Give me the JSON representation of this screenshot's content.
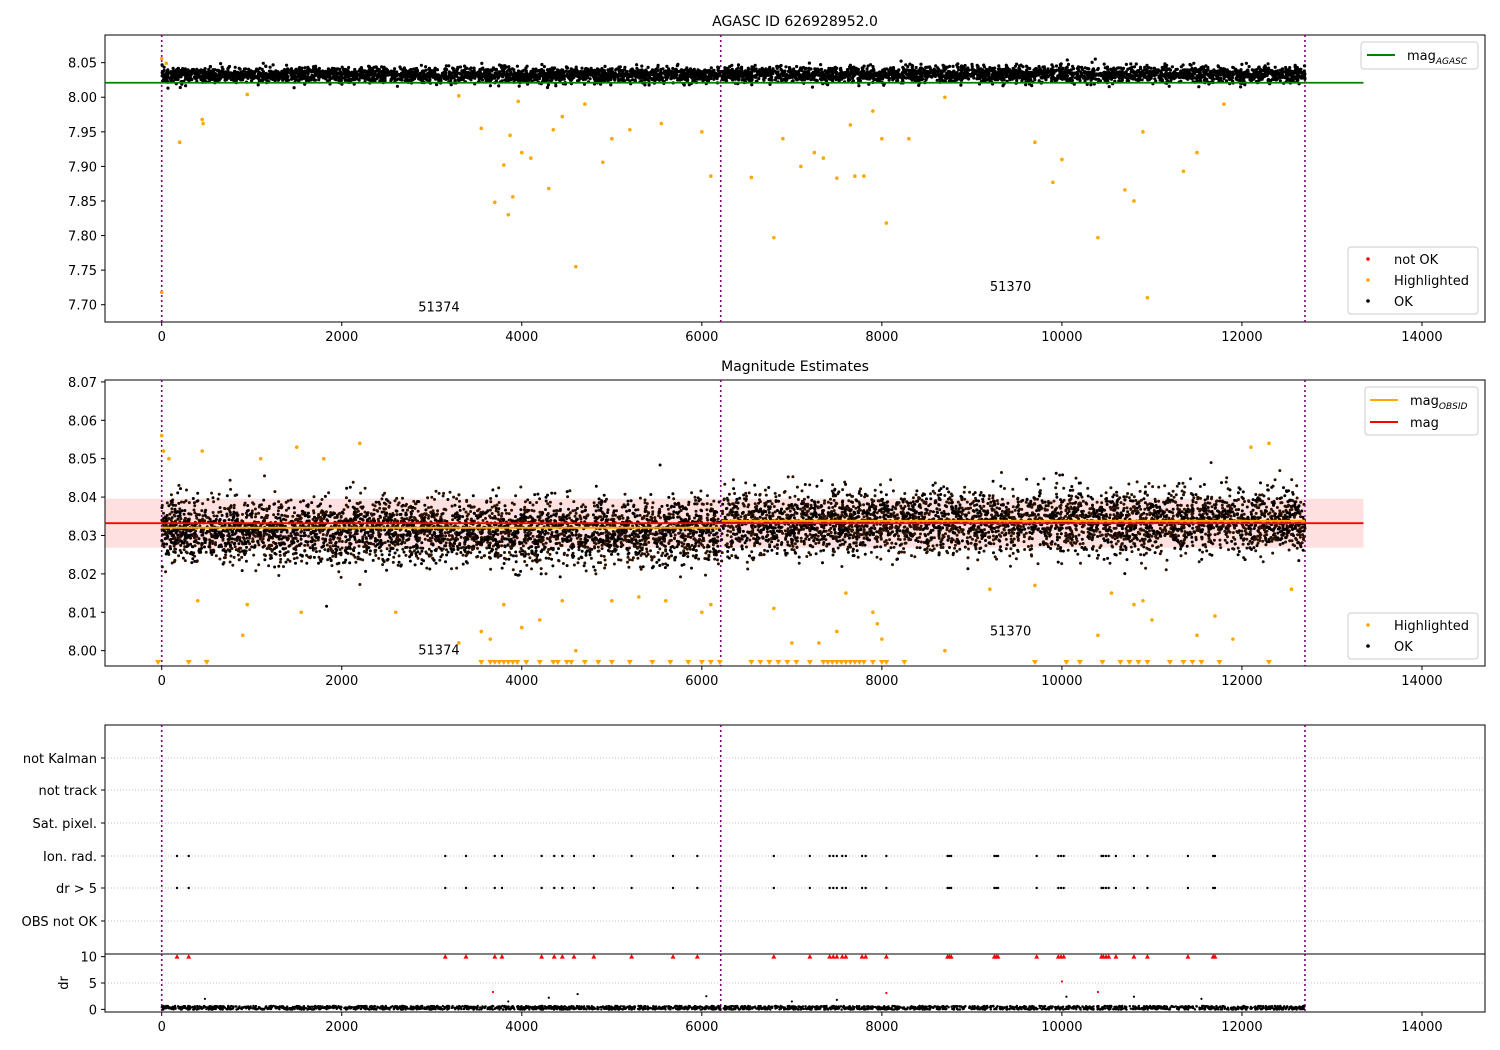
{
  "figure": {
    "title": "AGASC ID 626928952.0"
  },
  "chart_data": [
    {
      "type": "scatter",
      "title": "AGASC ID 626928952.0",
      "xlim": [
        -630,
        14700
      ],
      "ylim": [
        7.675,
        8.09
      ],
      "x_ticks": [
        0,
        2000,
        4000,
        6000,
        8000,
        10000,
        12000,
        14000
      ],
      "x_tick_labels": [
        "0",
        "2000",
        "4000",
        "6000",
        "8000",
        "10000",
        "12000",
        "14000"
      ],
      "y_ticks": [
        7.7,
        7.75,
        7.8,
        7.85,
        7.9,
        7.95,
        8.0,
        8.05
      ],
      "y_tick_labels": [
        "7.70",
        "7.75",
        "7.80",
        "7.85",
        "7.90",
        "7.95",
        "8.00",
        "8.05"
      ],
      "vlines": [
        0,
        6210,
        12700
      ],
      "obsid_labels": [
        {
          "text": "51374",
          "x": 2850,
          "y": 7.69
        },
        {
          "text": "51370",
          "x": 9200,
          "y": 7.72
        }
      ],
      "lines": [
        {
          "name": "mag_AGASC",
          "color": "#008000",
          "y": 8.021,
          "x": [
            -630,
            13350
          ]
        }
      ],
      "series_bands": [
        {
          "name": "OK",
          "color": "#000000",
          "x": [
            0,
            6200
          ],
          "center": 8.032,
          "halfwidth": 0.012
        },
        {
          "name": "OK",
          "color": "#000000",
          "x": [
            6220,
            12700
          ],
          "center": 8.033,
          "halfwidth": 0.013
        }
      ],
      "highlighted_points": [
        [
          0,
          8.056
        ],
        [
          0,
          7.718
        ],
        [
          50,
          8.049
        ],
        [
          200,
          7.935
        ],
        [
          450,
          7.968
        ],
        [
          460,
          7.962
        ],
        [
          950,
          8.004
        ],
        [
          3300,
          8.002
        ],
        [
          3550,
          7.955
        ],
        [
          3700,
          7.848
        ],
        [
          3800,
          7.902
        ],
        [
          3850,
          7.83
        ],
        [
          3870,
          7.945
        ],
        [
          3900,
          7.856
        ],
        [
          3960,
          7.994
        ],
        [
          4000,
          7.92
        ],
        [
          4100,
          7.912
        ],
        [
          4300,
          7.868
        ],
        [
          4350,
          7.953
        ],
        [
          4450,
          7.972
        ],
        [
          4600,
          7.755
        ],
        [
          4700,
          7.99
        ],
        [
          4900,
          7.906
        ],
        [
          5000,
          7.94
        ],
        [
          5200,
          7.953
        ],
        [
          5550,
          7.962
        ],
        [
          6000,
          7.95
        ],
        [
          6100,
          7.886
        ],
        [
          6550,
          7.884
        ],
        [
          6800,
          7.797
        ],
        [
          6900,
          7.94
        ],
        [
          7100,
          7.9
        ],
        [
          7250,
          7.92
        ],
        [
          7350,
          7.912
        ],
        [
          7500,
          7.883
        ],
        [
          7650,
          7.96
        ],
        [
          7700,
          7.886
        ],
        [
          7800,
          7.886
        ],
        [
          7900,
          7.98
        ],
        [
          8000,
          7.94
        ],
        [
          8050,
          7.818
        ],
        [
          8300,
          7.94
        ],
        [
          8700,
          8.0
        ],
        [
          9700,
          7.935
        ],
        [
          9900,
          7.877
        ],
        [
          10000,
          7.91
        ],
        [
          10400,
          7.797
        ],
        [
          10700,
          7.866
        ],
        [
          10800,
          7.85
        ],
        [
          10900,
          7.95
        ],
        [
          10950,
          7.71
        ],
        [
          11350,
          7.893
        ],
        [
          11500,
          7.92
        ],
        [
          11800,
          7.99
        ]
      ],
      "legend": [
        {
          "label": "mag",
          "subscript": "AGASC",
          "kind": "line",
          "color": "#008000",
          "position": "upper-right"
        },
        {
          "label": "not OK",
          "kind": "dot",
          "color": "#ff0000",
          "position": "lower-right"
        },
        {
          "label": "Highlighted",
          "kind": "dot",
          "color": "#ffa500",
          "position": "lower-right"
        },
        {
          "label": "OK",
          "kind": "dot",
          "color": "#000000",
          "position": "lower-right"
        }
      ]
    },
    {
      "type": "scatter",
      "title": "Magnitude Estimates",
      "xlim": [
        -630,
        14700
      ],
      "ylim": [
        7.996,
        8.0705
      ],
      "x_ticks": [
        0,
        2000,
        4000,
        6000,
        8000,
        10000,
        12000,
        14000
      ],
      "x_tick_labels": [
        "0",
        "2000",
        "4000",
        "6000",
        "8000",
        "10000",
        "12000",
        "14000"
      ],
      "y_ticks": [
        8.0,
        8.01,
        8.02,
        8.03,
        8.04,
        8.05,
        8.06,
        8.07
      ],
      "y_tick_labels": [
        "8.00",
        "8.01",
        "8.02",
        "8.03",
        "8.04",
        "8.05",
        "8.06",
        "8.07"
      ],
      "vlines": [
        0,
        6210,
        12700
      ],
      "obsid_labels": [
        {
          "text": "51374",
          "x": 2850,
          "y": 7.999
        },
        {
          "text": "51370",
          "x": 9200,
          "y": 8.004
        }
      ],
      "band": {
        "y": [
          8.0268,
          8.0396
        ],
        "x": [
          -630,
          13350
        ],
        "color": "#ffcccc"
      },
      "lines": [
        {
          "name": "mag",
          "color": "#ff0000",
          "y": 8.0332,
          "x": [
            -630,
            13350
          ]
        },
        {
          "name": "mag_OBSID",
          "color": "#ffa500",
          "segments": [
            {
              "x": [
                0,
                6200
              ],
              "y": 8.032
            },
            {
              "x": [
                6220,
                12700
              ],
              "y": 8.0338
            }
          ]
        }
      ],
      "series_bands": [
        {
          "name": "OK",
          "color": "#000000",
          "x": [
            0,
            6200
          ],
          "center": 8.031,
          "halfwidth": 0.009
        },
        {
          "name": "OK",
          "color": "#000000",
          "x": [
            6220,
            12700
          ],
          "center": 8.0335,
          "halfwidth": 0.009
        }
      ],
      "highlighted_points": [
        [
          0,
          8.056
        ],
        [
          20,
          8.052
        ],
        [
          80,
          8.05
        ],
        [
          400,
          8.013
        ],
        [
          450,
          8.052
        ],
        [
          900,
          8.004
        ],
        [
          950,
          8.012
        ],
        [
          1100,
          8.05
        ],
        [
          1550,
          8.01
        ],
        [
          1500,
          8.053
        ],
        [
          1800,
          8.05
        ],
        [
          2200,
          8.054
        ],
        [
          2600,
          8.01
        ],
        [
          3300,
          8.002
        ],
        [
          3550,
          8.005
        ],
        [
          3650,
          8.003
        ],
        [
          3800,
          8.012
        ],
        [
          4000,
          8.006
        ],
        [
          4200,
          8.008
        ],
        [
          4450,
          8.013
        ],
        [
          4600,
          8.0
        ],
        [
          5000,
          8.013
        ],
        [
          5300,
          8.014
        ],
        [
          5600,
          8.013
        ],
        [
          6000,
          8.01
        ],
        [
          6100,
          8.012
        ],
        [
          6800,
          8.011
        ],
        [
          7000,
          8.002
        ],
        [
          7300,
          8.002
        ],
        [
          7500,
          8.005
        ],
        [
          7600,
          8.015
        ],
        [
          7900,
          8.01
        ],
        [
          7950,
          8.007
        ],
        [
          8000,
          8.003
        ],
        [
          8700,
          8.0
        ],
        [
          9200,
          8.016
        ],
        [
          9700,
          8.017
        ],
        [
          10400,
          8.004
        ],
        [
          10550,
          8.015
        ],
        [
          10800,
          8.012
        ],
        [
          10900,
          8.013
        ],
        [
          11000,
          8.008
        ],
        [
          11500,
          8.004
        ],
        [
          11700,
          8.009
        ],
        [
          11900,
          8.003
        ],
        [
          12100,
          8.053
        ],
        [
          12300,
          8.054
        ],
        [
          12550,
          8.016
        ]
      ],
      "below_axis_markers_x": [
        -40,
        300,
        500,
        3550,
        3650,
        3700,
        3750,
        3800,
        3850,
        3900,
        3950,
        4050,
        4200,
        4350,
        4400,
        4500,
        4550,
        4700,
        4850,
        5000,
        5200,
        5450,
        5650,
        5850,
        6000,
        6100,
        6200,
        6550,
        6650,
        6750,
        6850,
        6950,
        7050,
        7200,
        7350,
        7400,
        7450,
        7500,
        7550,
        7600,
        7650,
        7700,
        7750,
        7800,
        7900,
        8000,
        8050,
        8250,
        9700,
        10050,
        10200,
        10450,
        10650,
        10750,
        10850,
        10950,
        11200,
        11350,
        11450,
        11550,
        11750,
        12300
      ],
      "legend": [
        {
          "label": "mag",
          "subscript": "OBSID",
          "kind": "line",
          "color": "#ffa500",
          "position": "upper-right"
        },
        {
          "label": "mag",
          "subscript": "",
          "kind": "line",
          "color": "#ff0000",
          "position": "upper-right"
        },
        {
          "label": "Highlighted",
          "kind": "dot",
          "color": "#ffa500",
          "position": "lower-right"
        },
        {
          "label": "OK",
          "kind": "dot",
          "color": "#000000",
          "position": "lower-right"
        }
      ]
    },
    {
      "type": "scatter",
      "title": "",
      "xlim": [
        -630,
        14700
      ],
      "categories": [
        "not Kalman",
        "not track",
        "Sat. pixel.",
        "Ion. rad.",
        "dr > 5",
        "OBS not OK"
      ],
      "vlines": [
        0,
        6210,
        12700
      ],
      "flag_events_x": [
        170,
        300,
        3150,
        3380,
        3700,
        3780,
        4220,
        4360,
        4450,
        4580,
        4800,
        5220,
        5680,
        5950,
        6800,
        7200,
        7420,
        7460,
        7500,
        7560,
        7600,
        7780,
        7820,
        8050,
        8730,
        8750,
        8770,
        9250,
        9270,
        9290,
        9720,
        9960,
        9990,
        10020,
        10440,
        10460,
        10490,
        10520,
        10600,
        10800,
        10950,
        11400,
        11680,
        11700
      ]
    },
    {
      "type": "scatter",
      "title": "",
      "ylabel": "dr",
      "xlim": [
        -630,
        14700
      ],
      "ylim": [
        -0.5,
        10.5
      ],
      "x_ticks": [
        0,
        2000,
        4000,
        6000,
        8000,
        10000,
        12000,
        14000
      ],
      "x_tick_labels": [
        "0",
        "2000",
        "4000",
        "6000",
        "8000",
        "10000",
        "12000",
        "14000"
      ],
      "y_ticks": [
        0,
        5,
        10
      ],
      "y_tick_labels": [
        "0",
        "5",
        "10"
      ],
      "vlines": [
        0,
        6210,
        12700
      ],
      "baseline_band": {
        "x": [
          0,
          12700
        ],
        "center": 0.3,
        "halfwidth": 0.35
      },
      "capped_points_y": 10,
      "scattered_points": [
        [
          480,
          2.0
        ],
        [
          3680,
          3.3
        ],
        [
          3850,
          1.5
        ],
        [
          4300,
          2.2
        ],
        [
          4620,
          2.9
        ],
        [
          6050,
          2.5
        ],
        [
          7000,
          1.5
        ],
        [
          7500,
          1.8
        ],
        [
          8050,
          3.1
        ],
        [
          10000,
          5.3
        ],
        [
          10050,
          2.4
        ],
        [
          10400,
          3.3
        ],
        [
          10800,
          2.4
        ],
        [
          11550,
          2.0
        ]
      ]
    }
  ]
}
